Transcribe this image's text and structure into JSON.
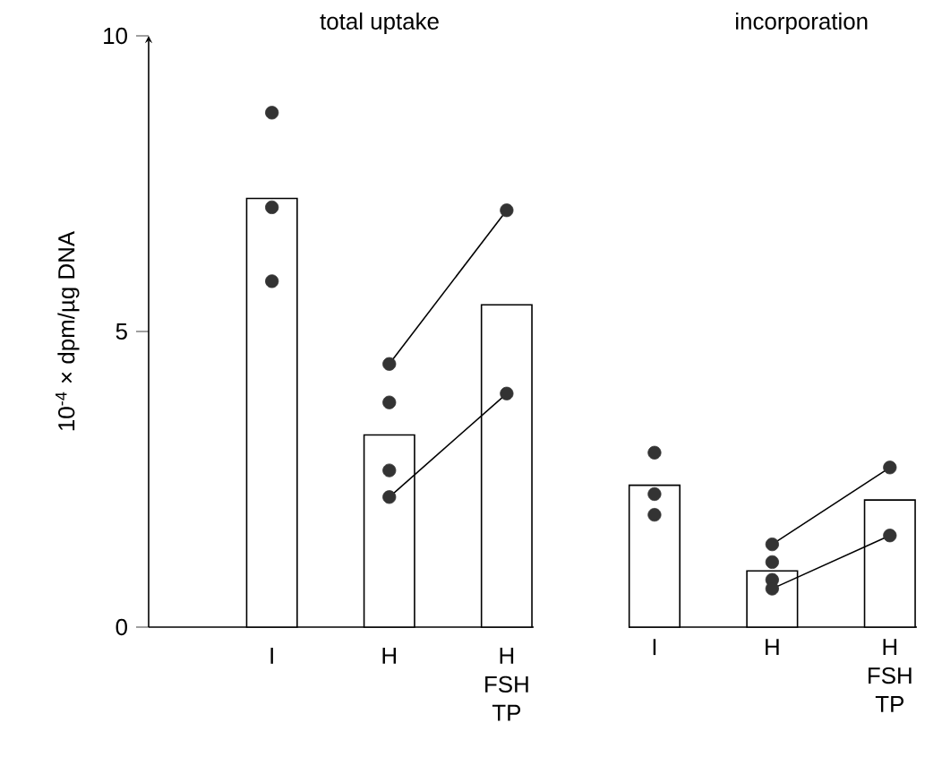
{
  "chart_data": [
    {
      "type": "bar",
      "title": "total uptake",
      "ylabel": "10$^{-4}$ × dpm/µg DNA",
      "categories": [
        "I",
        "H",
        "H FSH TP"
      ],
      "ylim": [
        0,
        10
      ],
      "yticks": [
        0,
        5,
        10
      ],
      "series": [
        {
          "color": "#ffffff",
          "values": [
            7.25,
            3.25,
            5.45
          ]
        },
        {
          "type": "scatter",
          "color": "#333333",
          "marker": "circle",
          "x": [
            "I",
            "I",
            "I",
            "H",
            "H",
            "H",
            "H",
            "H FSH TP",
            "H FSH TP"
          ],
          "values": [
            8.7,
            7.1,
            5.85,
            4.45,
            3.8,
            2.65,
            2.2,
            7.05,
            3.95
          ]
        },
        {
          "type": "line",
          "color": "#000000",
          "x": [
            "H",
            "H FSH TP"
          ],
          "values": [
            4.45,
            7.05
          ]
        },
        {
          "type": "line",
          "color": "#000000",
          "x": [
            "H",
            "H FSH TP"
          ],
          "values": [
            2.2,
            3.95
          ]
        }
      ]
    },
    {
      "type": "bar",
      "title": "incorporation",
      "categories": [
        "I",
        "H",
        "H FSH TP"
      ],
      "ylim": [
        0,
        10
      ],
      "tick_labels": "x",
      "series": [
        {
          "color": "#ffffff",
          "values": [
            2.4,
            0.95,
            2.15
          ]
        },
        {
          "type": "scatter",
          "color": "#333333",
          "marker": "circle",
          "x": [
            "I",
            "I",
            "I",
            "H",
            "H",
            "H",
            "H",
            "H FSH TP",
            "H FSH TP"
          ],
          "values": [
            2.95,
            2.25,
            1.9,
            1.4,
            1.1,
            0.8,
            0.65,
            2.7,
            1.55
          ]
        },
        {
          "type": "line",
          "color": "#000000",
          "x": [
            "H",
            "H FSH TP"
          ],
          "values": [
            1.4,
            2.7
          ]
        },
        {
          "type": "line",
          "color": "#000000",
          "x": [
            "H",
            "H FSH TP"
          ],
          "values": [
            0.65,
            1.55
          ]
        }
      ]
    }
  ]
}
